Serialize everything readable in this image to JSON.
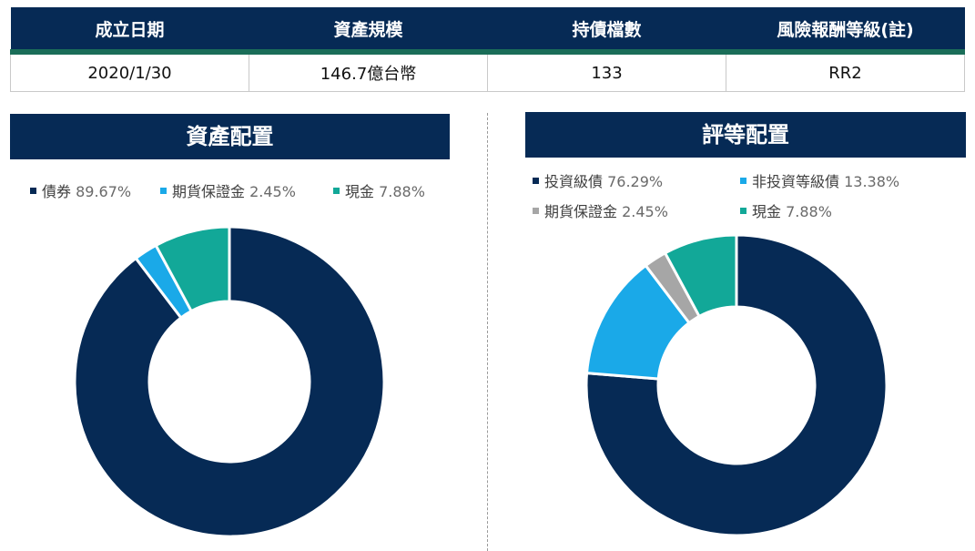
{
  "info": {
    "headers": [
      "成立日期",
      "資產規模",
      "持債檔數",
      "風險報酬等級(註)"
    ],
    "values": [
      "2020/1/30",
      "146.7億台幣",
      "133",
      "RR2"
    ]
  },
  "chart_data": [
    {
      "type": "pie",
      "title": "資產配置",
      "donut": true,
      "legend_position": "top",
      "slices": [
        {
          "label": "債券",
          "value": 89.67,
          "value_text": "89.67%",
          "color": "#062a55"
        },
        {
          "label": "期貨保證金",
          "value": 2.45,
          "value_text": "2.45%",
          "color": "#1aa9e8"
        },
        {
          "label": "現金",
          "value": 7.88,
          "value_text": "7.88%",
          "color": "#12a898"
        }
      ]
    },
    {
      "type": "pie",
      "title": "評等配置",
      "donut": true,
      "legend_position": "top",
      "slices": [
        {
          "label": "投資級債",
          "value": 76.29,
          "value_text": "76.29%",
          "color": "#062a55"
        },
        {
          "label": "非投資等級債",
          "value": 13.38,
          "value_text": "13.38%",
          "color": "#1aa9e8"
        },
        {
          "label": "期貨保證金",
          "value": 2.45,
          "value_text": "2.45%",
          "color": "#a6a6a6"
        },
        {
          "label": "現金",
          "value": 7.88,
          "value_text": "7.88%",
          "color": "#12a898"
        }
      ]
    }
  ]
}
